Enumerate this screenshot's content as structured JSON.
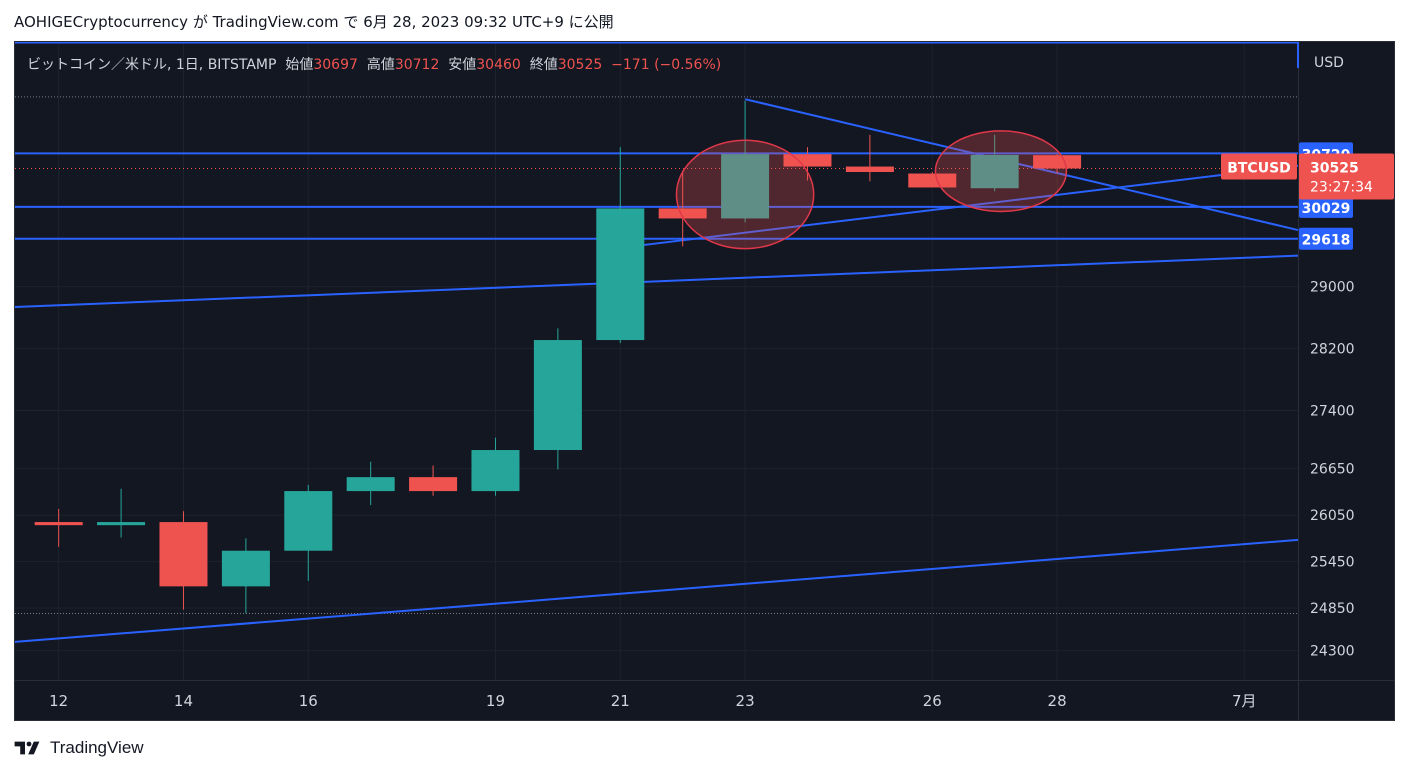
{
  "header": {
    "text": "AOHIGECryptocurrency が TradingView.com で 6月 28, 2023 09:32 UTC+9 に公開"
  },
  "legend": {
    "symbol": "ビットコイン／米ドル, 1日, BITSTAMP",
    "open_label": "始値",
    "open": "30697",
    "high_label": "高値",
    "high": "30712",
    "low_label": "安値",
    "low": "30460",
    "close_label": "終値",
    "close": "30525",
    "change": "−171 (−0.56%)"
  },
  "axis": {
    "currency": "USD",
    "last_price_label": "30525",
    "countdown": "23:27:34",
    "ticker_badge": "BTCUSD"
  },
  "footer": {
    "brand": "TradingView"
  },
  "colors": {
    "up": "#26a69a",
    "down": "#ef5350",
    "drawing": "#2962ff",
    "background": "#131722",
    "grid": "#1e222d"
  },
  "chart_data": {
    "type": "candlestick",
    "ylim": [
      24050,
      31900
    ],
    "y_ticks": [
      24300,
      24850,
      25450,
      26050,
      26650,
      27400,
      28200,
      29000
    ],
    "x_ticks": [
      {
        "day": 12,
        "label": "12"
      },
      {
        "day": 14,
        "label": "14"
      },
      {
        "day": 16,
        "label": "16"
      },
      {
        "day": 19,
        "label": "19"
      },
      {
        "day": 21,
        "label": "21"
      },
      {
        "day": 23,
        "label": "23"
      },
      {
        "day": 26,
        "label": "26"
      },
      {
        "day": 28,
        "label": "28"
      },
      {
        "day": 31,
        "label": "7月"
      }
    ],
    "candles": [
      {
        "day": 12,
        "open": 25960,
        "high": 26130,
        "low": 25640,
        "close": 25920
      },
      {
        "day": 13,
        "open": 25920,
        "high": 26390,
        "low": 25760,
        "close": 25960
      },
      {
        "day": 14,
        "open": 25960,
        "high": 26100,
        "low": 24830,
        "close": 25130
      },
      {
        "day": 15,
        "open": 25130,
        "high": 25750,
        "low": 24780,
        "close": 25590
      },
      {
        "day": 16,
        "open": 25590,
        "high": 26440,
        "low": 25200,
        "close": 26360
      },
      {
        "day": 17,
        "open": 26360,
        "high": 26740,
        "low": 26180,
        "close": 26540
      },
      {
        "day": 18,
        "open": 26540,
        "high": 26690,
        "low": 26300,
        "close": 26360
      },
      {
        "day": 19,
        "open": 26360,
        "high": 27050,
        "low": 26300,
        "close": 26890
      },
      {
        "day": 20,
        "open": 26890,
        "high": 28460,
        "low": 26640,
        "close": 28310
      },
      {
        "day": 21,
        "open": 28310,
        "high": 30800,
        "low": 28270,
        "close": 30010
      },
      {
        "day": 22,
        "open": 30010,
        "high": 30500,
        "low": 29520,
        "close": 29880
      },
      {
        "day": 23,
        "open": 29880,
        "high": 31400,
        "low": 29830,
        "close": 30710
      },
      {
        "day": 24,
        "open": 30710,
        "high": 30800,
        "low": 30370,
        "close": 30550
      },
      {
        "day": 25,
        "open": 30550,
        "high": 30960,
        "low": 30360,
        "close": 30480
      },
      {
        "day": 26,
        "open": 30460,
        "high": 30480,
        "low": 30280,
        "close": 30280
      },
      {
        "day": 27,
        "open": 30270,
        "high": 30960,
        "low": 30230,
        "close": 30700
      },
      {
        "day": 28,
        "open": 30697,
        "high": 30712,
        "low": 30460,
        "close": 30525
      }
    ],
    "horizontal_levels": [
      {
        "value": 30720,
        "label": "30720"
      },
      {
        "value": 30029,
        "label": "30029"
      },
      {
        "value": 29618,
        "label": "29618"
      }
    ],
    "trend_lines": [
      {
        "from": {
          "day": 23,
          "price": 31420
        },
        "to": {
          "day": 32.4,
          "price": 29730
        }
      },
      {
        "from": {
          "day": 21.3,
          "price": 29530
        },
        "to": {
          "day": 32.4,
          "price": 30560
        }
      },
      {
        "from": {
          "day": 11.1,
          "price": 28730
        },
        "to": {
          "day": 32.4,
          "price": 29400
        }
      },
      {
        "from": {
          "day": 11.1,
          "price": 24400
        },
        "to": {
          "day": 32.4,
          "price": 25730
        }
      }
    ],
    "highlight_ellipses": [
      {
        "center_day": 23,
        "center_price": 30190,
        "radius_days": 1.1,
        "radius_price": 700
      },
      {
        "center_day": 27.1,
        "center_price": 30490,
        "radius_days": 1.05,
        "radius_price": 520
      }
    ],
    "dotted_levels": [
      31450,
      24780
    ]
  }
}
